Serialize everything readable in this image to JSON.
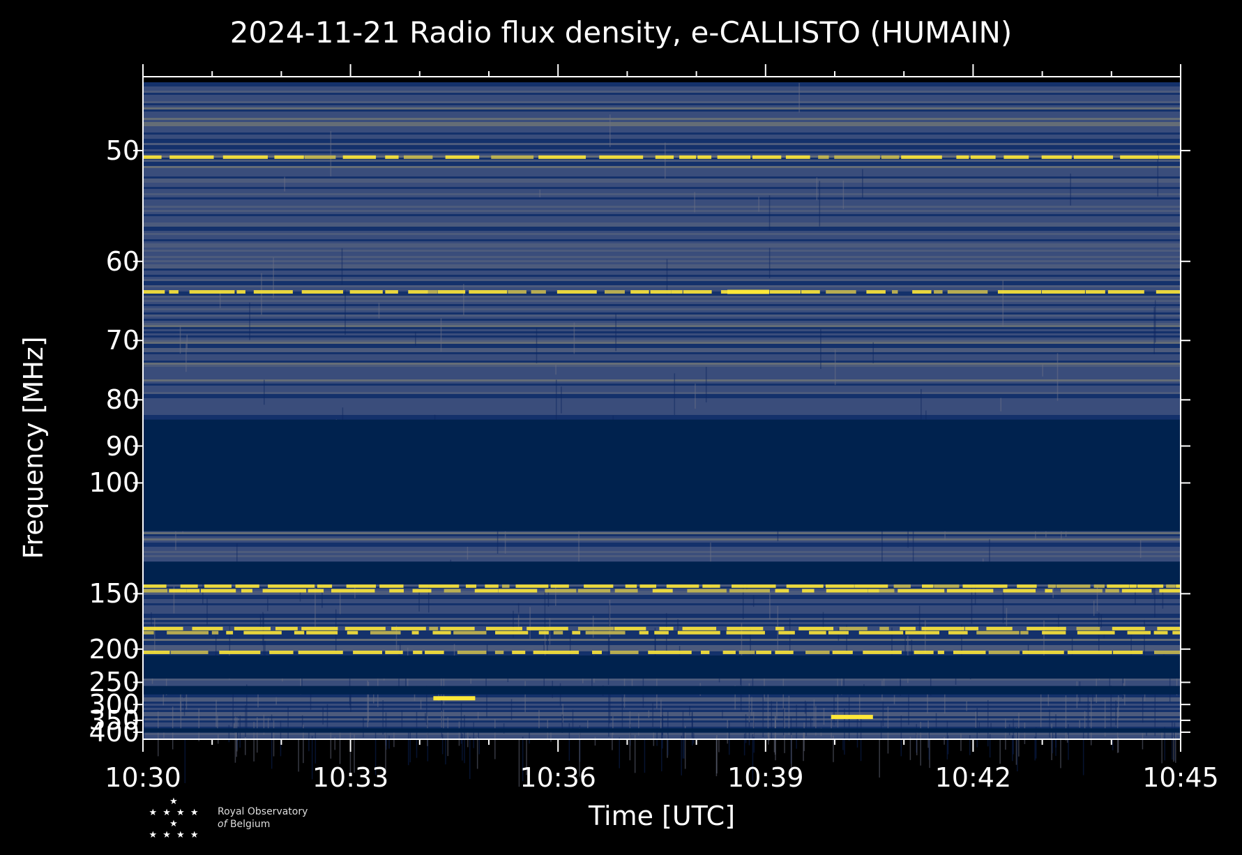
{
  "chart_data": {
    "type": "heatmap",
    "title": "2024-11-21 Radio flux density, e-CALLISTO (HUMAIN)",
    "xlabel": "Time [UTC]",
    "ylabel": "Frequency [MHz]",
    "x_ticks": [
      "10:30",
      "10:33",
      "10:36",
      "10:39",
      "10:42",
      "10:45"
    ],
    "x_range": [
      "10:30",
      "10:45"
    ],
    "y_ticks": [
      50,
      60,
      70,
      80,
      90,
      100,
      150,
      200,
      250,
      300,
      350,
      400
    ],
    "y_range": [
      45,
      437
    ],
    "y_scale": "reciprocal",
    "colormap": [
      "#00224e",
      "#575c6d",
      "#a39b76",
      "#fee838"
    ],
    "masked_color": "#00224e",
    "masked_bands_mhz": [
      [
        84,
        117
      ],
      [
        131,
        144
      ],
      [
        208,
        243
      ],
      [
        257,
        275
      ],
      [
        382,
        402
      ]
    ],
    "bright_lines_mhz": [
      50.5,
      63.5,
      145,
      148,
      178,
      182,
      204
    ],
    "bursts": [
      {
        "time": "10:34:30",
        "freq_mhz": 284
      },
      {
        "time": "10:40:15",
        "freq_mhz": 338
      },
      {
        "time": "10:38:45",
        "freq_mhz": 63.5
      }
    ]
  },
  "logo": {
    "stars": "★\n★ ★ ★ ★ ★\n★ ★ ★ ★",
    "line1": "Royal Observatory",
    "line2_italic": "of",
    "line2": "Belgium"
  }
}
